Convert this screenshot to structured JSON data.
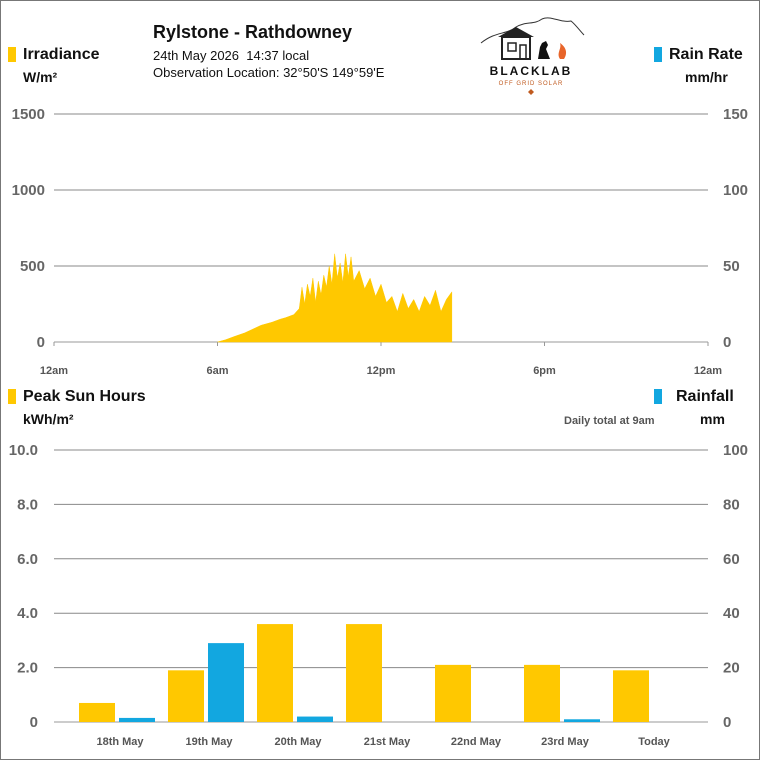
{
  "header": {
    "title": "Rylstone - Rathdowney",
    "datetime": "24th May 2026  14:37 local",
    "location": "Observation Location: 32°50'S 149°59'E"
  },
  "logo": {
    "brand": "BLACKLAB",
    "tagline": "OFF GRID SOLAR"
  },
  "colors": {
    "irradiance": "#FFC800",
    "rain": "#12A7E0",
    "grid": "#888888",
    "axis_text": "#666666"
  },
  "top_panel": {
    "left_label": "Irradiance",
    "left_unit": "W/m²",
    "right_label": "Rain Rate",
    "right_unit": "mm/hr"
  },
  "bottom_panel": {
    "left_label": "Peak Sun Hours",
    "left_unit": "kWh/m²",
    "right_label": "Rainfall",
    "right_unit": "mm",
    "note": "Daily total at 9am"
  },
  "chart_data": [
    {
      "type": "area",
      "series": [
        {
          "name": "Irradiance",
          "x_hours": [
            6.0,
            6.3,
            6.6,
            7.0,
            7.3,
            7.6,
            8.0,
            8.3,
            8.5,
            8.8,
            9.0,
            9.1,
            9.2,
            9.3,
            9.4,
            9.5,
            9.6,
            9.7,
            9.8,
            9.9,
            10.0,
            10.1,
            10.2,
            10.3,
            10.4,
            10.5,
            10.6,
            10.7,
            10.8,
            10.9,
            11.0,
            11.2,
            11.4,
            11.6,
            11.8,
            12.0,
            12.2,
            12.4,
            12.6,
            12.8,
            13.0,
            13.2,
            13.4,
            13.6,
            13.8,
            14.0,
            14.2,
            14.4,
            14.6
          ],
          "values": [
            0,
            15,
            35,
            60,
            85,
            110,
            130,
            150,
            160,
            180,
            220,
            360,
            250,
            380,
            300,
            420,
            260,
            400,
            310,
            440,
            360,
            500,
            380,
            580,
            420,
            520,
            390,
            580,
            430,
            560,
            400,
            470,
            350,
            420,
            300,
            380,
            260,
            300,
            200,
            320,
            220,
            280,
            200,
            300,
            240,
            340,
            200,
            280,
            330
          ]
        }
      ],
      "x_ticks": [
        "12am",
        "6am",
        "12pm",
        "6pm",
        "12am"
      ],
      "y_left_ticks": [
        "0",
        "500",
        "1000",
        "1500"
      ],
      "y_right_ticks": [
        "0",
        "50",
        "100",
        "150"
      ],
      "ylim_left": [
        0,
        1500
      ],
      "ylim_right": [
        0,
        150
      ],
      "xlim": [
        0,
        24
      ]
    },
    {
      "type": "bar",
      "categories": [
        "18th May",
        "19th May",
        "20th May",
        "21st May",
        "22nd May",
        "23rd May",
        "Today"
      ],
      "series": [
        {
          "name": "Peak Sun Hours",
          "values": [
            0.7,
            1.9,
            3.6,
            3.6,
            2.1,
            2.1,
            1.9
          ]
        },
        {
          "name": "Rainfall",
          "values": [
            1.5,
            29,
            2,
            0,
            0,
            1,
            0
          ]
        }
      ],
      "y_left_ticks": [
        "0",
        "2.0",
        "4.0",
        "6.0",
        "8.0",
        "10.0"
      ],
      "y_right_ticks": [
        "0",
        "20",
        "40",
        "60",
        "80",
        "100"
      ],
      "ylim_left": [
        0,
        10
      ],
      "ylim_right": [
        0,
        100
      ]
    }
  ]
}
